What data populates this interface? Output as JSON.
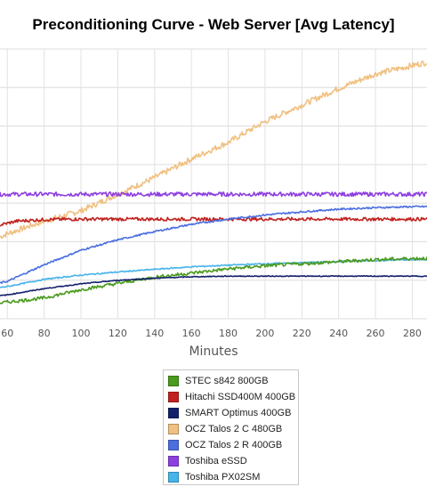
{
  "chart_data": {
    "type": "line",
    "title": "Preconditioning Curve - Web Server [Avg Latency]",
    "xlabel": "Minutes",
    "x_ticks": [
      60,
      80,
      100,
      120,
      140,
      160,
      180,
      200,
      220,
      240,
      260,
      280
    ],
    "grid": true,
    "legend_position": "bottom",
    "series": [
      {
        "name": "STEC s842 800GB",
        "color": "#4a9a1c",
        "x": [
          55,
          60,
          80,
          100,
          120,
          140,
          160,
          180,
          200,
          220,
          240,
          260,
          280,
          290
        ],
        "y": [
          0.075,
          0.08,
          0.1,
          0.14,
          0.17,
          0.2,
          0.22,
          0.24,
          0.255,
          0.265,
          0.275,
          0.285,
          0.29,
          0.292
        ],
        "noise": 0.008
      },
      {
        "name": "Hitachi SSD400M 400GB",
        "color": "#c0231f",
        "x": [
          55,
          65,
          80,
          100,
          120,
          140,
          160,
          180,
          200,
          220,
          240,
          260,
          280,
          290
        ],
        "y": [
          0.45,
          0.47,
          0.478,
          0.48,
          0.48,
          0.48,
          0.48,
          0.48,
          0.48,
          0.48,
          0.48,
          0.48,
          0.48,
          0.48
        ],
        "noise": 0.008
      },
      {
        "name": "SMART Optimus 400GB",
        "color": "#14206b",
        "x": [
          55,
          60,
          80,
          100,
          120,
          140,
          160,
          180,
          200,
          220,
          240,
          260,
          280,
          290
        ],
        "y": [
          0.11,
          0.115,
          0.145,
          0.168,
          0.185,
          0.195,
          0.202,
          0.205,
          0.205,
          0.205,
          0.205,
          0.205,
          0.205,
          0.205
        ],
        "noise": 0.002
      },
      {
        "name": "OCZ Talos 2 C 480GB",
        "color": "#f0c080",
        "x": [
          55,
          60,
          80,
          100,
          120,
          140,
          160,
          180,
          200,
          220,
          240,
          260,
          280,
          290
        ],
        "y": [
          0.39,
          0.41,
          0.47,
          0.52,
          0.6,
          0.68,
          0.77,
          0.85,
          0.95,
          1.03,
          1.11,
          1.18,
          1.22,
          1.24
        ],
        "noise": 0.014
      },
      {
        "name": "OCZ Talos 2 R 400GB",
        "color": "#4a6ee0",
        "x": [
          55,
          60,
          80,
          100,
          120,
          140,
          160,
          180,
          200,
          220,
          240,
          260,
          280,
          290
        ],
        "y": [
          0.17,
          0.18,
          0.26,
          0.33,
          0.38,
          0.42,
          0.455,
          0.48,
          0.5,
          0.515,
          0.528,
          0.535,
          0.54,
          0.54
        ],
        "noise": 0.004
      },
      {
        "name": "Toshiba eSSD",
        "color": "#8e3fe0",
        "x": [
          55,
          60,
          80,
          100,
          120,
          140,
          160,
          180,
          200,
          220,
          240,
          260,
          280,
          290
        ],
        "y": [
          0.6,
          0.6,
          0.6,
          0.6,
          0.6,
          0.6,
          0.6,
          0.6,
          0.6,
          0.6,
          0.6,
          0.6,
          0.6,
          0.6
        ],
        "noise": 0.01
      },
      {
        "name": "Toshiba PX02SM",
        "color": "#47b4ea",
        "x": [
          55,
          60,
          80,
          100,
          120,
          140,
          160,
          180,
          200,
          220,
          240,
          260,
          280,
          290
        ],
        "y": [
          0.15,
          0.155,
          0.19,
          0.21,
          0.225,
          0.238,
          0.25,
          0.258,
          0.265,
          0.27,
          0.275,
          0.28,
          0.285,
          0.285
        ],
        "noise": 0.003
      }
    ]
  }
}
